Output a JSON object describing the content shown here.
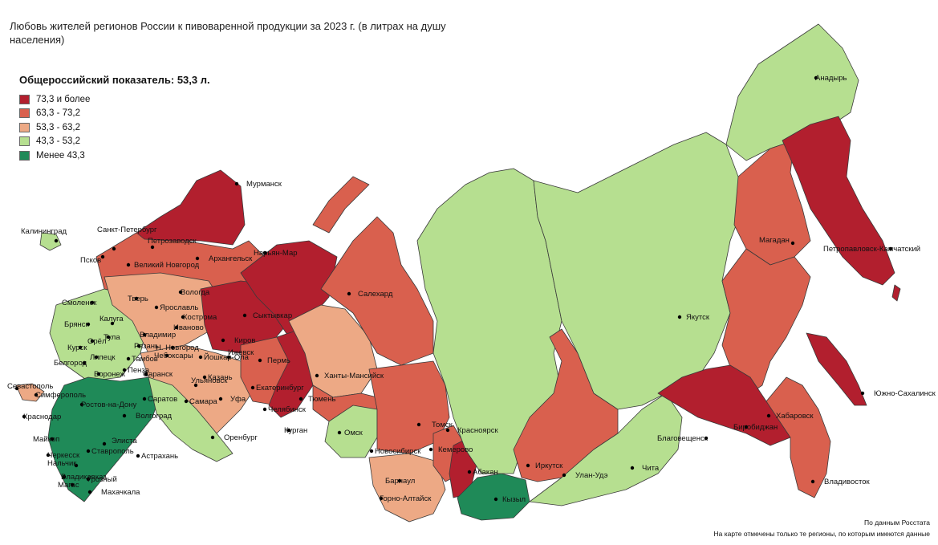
{
  "title": "Любовь жителей регионов России к пивоваренной продукции за 2023 г. (в литрах на душу населения)",
  "legend": {
    "heading": "Общероссийский показатель: 53,3 л.",
    "items": [
      {
        "label": "73,3 и более",
        "color": "#b21f2e"
      },
      {
        "label": "63,3 - 73,2",
        "color": "#d9604e"
      },
      {
        "label": "53,3 - 63,2",
        "color": "#eda985"
      },
      {
        "label": "43,3 - 53,2",
        "color": "#b6df90"
      },
      {
        "label": "Менее 43,3",
        "color": "#1f8a58"
      }
    ]
  },
  "cities": [
    "Калининград",
    "Санкт-Петербург",
    "Петрозаводск",
    "Мурманск",
    "Псков",
    "Великий Новгород",
    "Архангельск",
    "Нарьян-Мар",
    "Вологда",
    "Смоленск",
    "Тверь",
    "Ярославль",
    "Кострома",
    "Иваново",
    "Брянск",
    "Калуга",
    "Тула",
    "Владимир",
    "Орёл",
    "Рязань",
    "Н. Новгород",
    "Курск",
    "Липецк",
    "Чебоксары",
    "Йошкар-Ола",
    "Киров",
    "Сыктывкар",
    "Белгород",
    "Тамбов",
    "Воронеж",
    "Пенза",
    "Саранск",
    "Ульяновск",
    "Казань",
    "Ижевск",
    "Пермь",
    "Салехард",
    "Ханты-Мансийск",
    "Севастополь",
    "Симферополь",
    "Ростов-на-Дону",
    "Саратов",
    "Самара",
    "Уфа",
    "Екатеринбург",
    "Тюмень",
    "Челябинск",
    "Курган",
    "Оренбург",
    "Краснодар",
    "Волгоград",
    "Майкоп",
    "Элиста",
    "Черкесск",
    "Ставрополь",
    "Астрахань",
    "Нальчик",
    "Владикавказ",
    "Грозный",
    "Магас",
    "Махачкала",
    "Омск",
    "Новосибирск",
    "Томск",
    "Кемерово",
    "Барнаул",
    "Горно-Алтайск",
    "Абакан",
    "Красноярск",
    "Кызыл",
    "Иркутск",
    "Улан-Удэ",
    "Чита",
    "Якутск",
    "Магадан",
    "Анадырь",
    "Петропавловск-Камчатский",
    "Благовещенск",
    "Биробиджан",
    "Хабаровск",
    "Южно-Сахалинск",
    "Владивосток"
  ],
  "footer": {
    "source": "По данным Росстата",
    "note": "На карте отмечены только те регионы, по которым имеются данные"
  }
}
